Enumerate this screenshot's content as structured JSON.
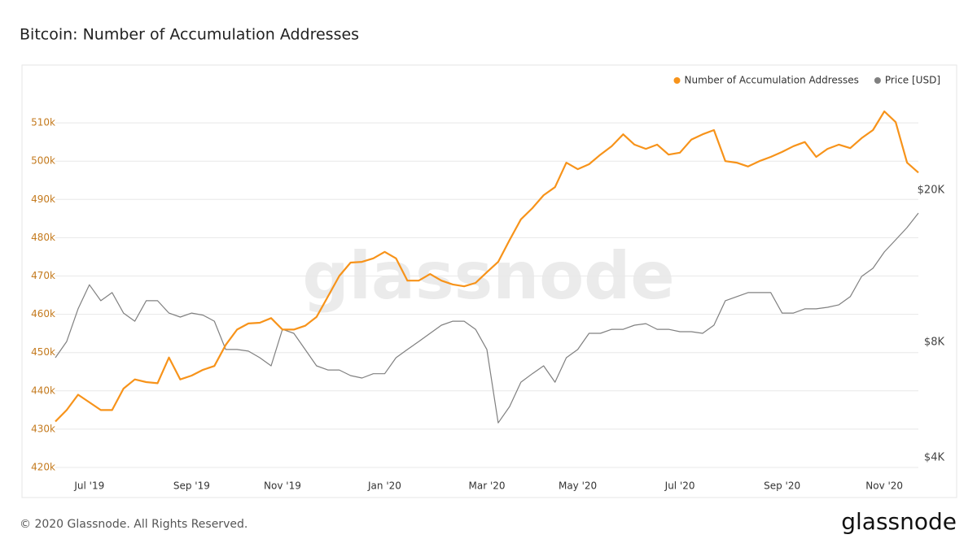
{
  "chart_data": {
    "type": "line",
    "title": "Bitcoin: Number of Accumulation Addresses",
    "watermark": "glassnode",
    "categories": [
      null,
      null,
      null,
      "Jul '19",
      null,
      null,
      null,
      null,
      null,
      null,
      null,
      null,
      "Sep '19",
      null,
      null,
      null,
      null,
      null,
      null,
      null,
      "Nov '19",
      null,
      null,
      null,
      null,
      null,
      null,
      null,
      null,
      "Jan '20",
      null,
      null,
      null,
      null,
      null,
      null,
      null,
      null,
      "Mar '20",
      null,
      null,
      null,
      null,
      null,
      null,
      null,
      "May '20",
      null,
      null,
      null,
      null,
      null,
      null,
      null,
      null,
      "Jul '20",
      null,
      null,
      null,
      null,
      null,
      null,
      null,
      null,
      "Sep '20",
      null,
      null,
      null,
      null,
      null,
      null,
      null,
      null,
      "Nov '20",
      null,
      null,
      null
    ],
    "series": [
      {
        "name": "Number of Accumulation Addresses",
        "color": "#f7931a",
        "values": [
          432000,
          435000,
          439000,
          437000,
          435000,
          435000,
          440600,
          443000,
          442300,
          442000,
          448700,
          443000,
          444000,
          445500,
          446500,
          452000,
          456000,
          457600,
          457800,
          459000,
          456000,
          456000,
          457000,
          459300,
          464600,
          470000,
          473500,
          473700,
          474600,
          476300,
          474600,
          468800,
          468800,
          470500,
          468800,
          467800,
          467300,
          468200,
          471000,
          473700,
          479400,
          484800,
          487700,
          491100,
          493200,
          499600,
          497900,
          499200,
          501700,
          503900,
          507000,
          504300,
          503200,
          504300,
          501700,
          502200,
          505600,
          507000,
          508100,
          500000,
          499600,
          498600,
          500000,
          501100,
          502400,
          503900,
          505000,
          501100,
          503200,
          504300,
          503400,
          506000,
          508100,
          513000,
          510200,
          499600,
          497000
        ]
      },
      {
        "name": "Price [USD]",
        "color": "#808080",
        "axis": "y2",
        "values": [
          7740,
          8530,
          10380,
          12000,
          10900,
          11450,
          10120,
          9640,
          10900,
          10900,
          10120,
          9880,
          10120,
          10000,
          9640,
          8130,
          8130,
          8050,
          7740,
          7370,
          9180,
          8960,
          8130,
          7370,
          7190,
          7190,
          6950,
          6850,
          7030,
          7030,
          7740,
          8130,
          8530,
          8960,
          9410,
          9640,
          9640,
          9180,
          8130,
          5230,
          5770,
          6680,
          7030,
          7370,
          6680,
          7740,
          8130,
          8960,
          8960,
          9180,
          9180,
          9410,
          9500,
          9180,
          9180,
          9050,
          9050,
          8960,
          9410,
          10900,
          11170,
          11450,
          11450,
          11450,
          10120,
          10120,
          10380,
          10380,
          10480,
          10640,
          11170,
          12620,
          13250,
          14620,
          15720,
          16930,
          18470
        ]
      }
    ],
    "ylim": [
      420000,
      520000
    ],
    "yticks": [
      {
        "value": 420000,
        "label": "420k"
      },
      {
        "value": 430000,
        "label": "430k"
      },
      {
        "value": 440000,
        "label": "440k"
      },
      {
        "value": 450000,
        "label": "450k"
      },
      {
        "value": 460000,
        "label": "460k"
      },
      {
        "value": 470000,
        "label": "470k"
      },
      {
        "value": 480000,
        "label": "480k"
      },
      {
        "value": 490000,
        "label": "490k"
      },
      {
        "value": 500000,
        "label": "500k"
      },
      {
        "value": 510000,
        "label": "510k"
      }
    ],
    "y2lim": [
      4000,
      40000
    ],
    "y2ticks": [
      {
        "value": 4000,
        "label": "$4K"
      },
      {
        "value": 8000,
        "label": "$8K"
      },
      {
        "value": 20000,
        "label": "$20K"
      }
    ],
    "y2log": true,
    "grid": true,
    "legend": "top-right"
  },
  "footer": {
    "copyright": "© 2020 Glassnode. All Rights Reserved.",
    "logo": "glassnode"
  }
}
